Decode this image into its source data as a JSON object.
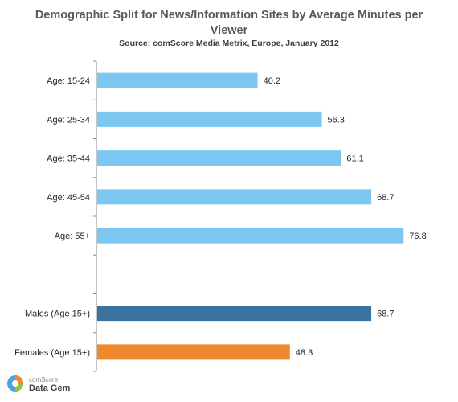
{
  "title": "Demographic Split for News/Information Sites by Average Minutes per Viewer",
  "subtitle": "Source: comScore Media Metrix, Europe, January 2012",
  "logo": {
    "top": "comScore",
    "bottom": "Data Gem"
  },
  "chart_data": {
    "type": "bar",
    "orientation": "horizontal",
    "categories": [
      "Age: 15-24",
      "Age: 25-34",
      "Age: 35-44",
      "Age: 45-54",
      "Age: 55+",
      "",
      "Males (Age 15+)",
      "Females (Age 15+)"
    ],
    "values": [
      40.2,
      56.3,
      61.1,
      68.7,
      76.8,
      null,
      68.7,
      48.3
    ],
    "value_labels": [
      "40.2",
      "56.3",
      "61.1",
      "68.7",
      "76.8",
      "",
      "68.7",
      "48.3"
    ],
    "colors": [
      "#7cc7f2",
      "#7cc7f2",
      "#7cc7f2",
      "#7cc7f2",
      "#7cc7f2",
      "",
      "#3a72a0",
      "#f0882e"
    ],
    "xlim": [
      0,
      85
    ],
    "grid": false,
    "legend": "none"
  }
}
